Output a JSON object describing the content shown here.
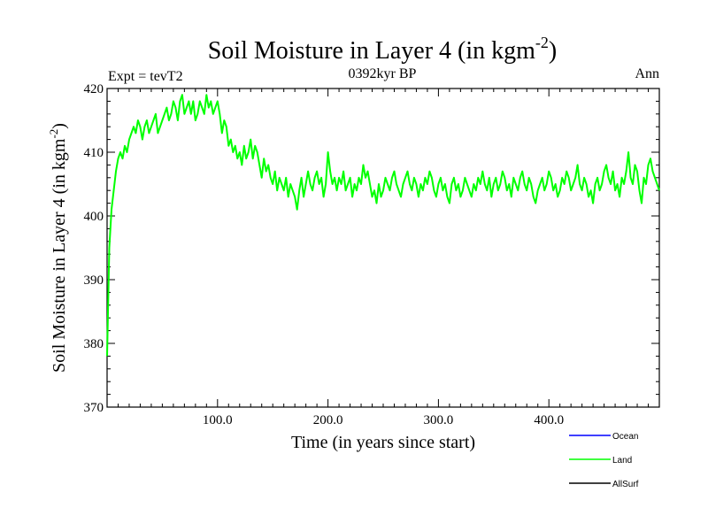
{
  "chart_data": {
    "type": "line",
    "title": "Soil Moisture in Layer 4 (in kgm",
    "title_sup": "-2",
    "title_close": ")",
    "subtitle": "0392kyr BP",
    "left_label": "Expt = tevT2",
    "right_label": "Ann",
    "xlabel": "Time (in years since start)",
    "ylabel": "Soil Moisture in Layer 4 (in kgm",
    "ylabel_sup": "-2",
    "ylabel_close": ")",
    "xlim": [
      0,
      500
    ],
    "ylim": [
      370,
      420
    ],
    "x_ticks": [
      {
        "value": 100,
        "label": "100.0"
      },
      {
        "value": 200,
        "label": "200.0"
      },
      {
        "value": 300,
        "label": "300.0"
      },
      {
        "value": 400,
        "label": "400.0"
      }
    ],
    "y_ticks": [
      {
        "value": 370,
        "label": "370"
      },
      {
        "value": 380,
        "label": "380"
      },
      {
        "value": 390,
        "label": "390"
      },
      {
        "value": 400,
        "label": "400"
      },
      {
        "value": 410,
        "label": "410"
      },
      {
        "value": 420,
        "label": "420"
      }
    ],
    "legend": [
      {
        "name": "Ocean",
        "color": "#0000ff"
      },
      {
        "name": "Land",
        "color": "#00ff00"
      },
      {
        "name": "AllSurf",
        "color": "#000000"
      }
    ],
    "legend_placement": "bottom-right, below plot",
    "grid": false,
    "series": [
      {
        "name": "Land",
        "color": "#00ff00",
        "x": [
          0,
          2,
          4,
          6,
          8,
          10,
          12,
          14,
          16,
          18,
          20,
          22,
          24,
          26,
          28,
          30,
          32,
          34,
          36,
          38,
          40,
          42,
          44,
          46,
          48,
          50,
          52,
          54,
          56,
          58,
          60,
          62,
          64,
          66,
          68,
          70,
          72,
          74,
          76,
          78,
          80,
          82,
          84,
          86,
          88,
          90,
          92,
          94,
          96,
          98,
          100,
          102,
          104,
          106,
          108,
          110,
          112,
          114,
          116,
          118,
          120,
          122,
          124,
          126,
          128,
          130,
          132,
          134,
          136,
          138,
          140,
          142,
          144,
          146,
          148,
          150,
          152,
          154,
          156,
          158,
          160,
          162,
          164,
          166,
          168,
          170,
          172,
          174,
          176,
          178,
          180,
          182,
          184,
          186,
          188,
          190,
          192,
          194,
          196,
          198,
          200,
          202,
          204,
          206,
          208,
          210,
          212,
          214,
          216,
          218,
          220,
          222,
          224,
          226,
          228,
          230,
          232,
          234,
          236,
          238,
          240,
          242,
          244,
          246,
          248,
          250,
          252,
          254,
          256,
          258,
          260,
          262,
          264,
          266,
          268,
          270,
          272,
          274,
          276,
          278,
          280,
          282,
          284,
          286,
          288,
          290,
          292,
          294,
          296,
          298,
          300,
          302,
          304,
          306,
          308,
          310,
          312,
          314,
          316,
          318,
          320,
          322,
          324,
          326,
          328,
          330,
          332,
          334,
          336,
          338,
          340,
          342,
          344,
          346,
          348,
          350,
          352,
          354,
          356,
          358,
          360,
          362,
          364,
          366,
          368,
          370,
          372,
          374,
          376,
          378,
          380,
          382,
          384,
          386,
          388,
          390,
          392,
          394,
          396,
          398,
          400,
          402,
          404,
          406,
          408,
          410,
          412,
          414,
          416,
          418,
          420,
          422,
          424,
          426,
          428,
          430,
          432,
          434,
          436,
          438,
          440,
          442,
          444,
          446,
          448,
          450,
          452,
          454,
          456,
          458,
          460,
          462,
          464,
          466,
          468,
          470,
          472,
          474,
          476,
          478,
          480,
          482,
          484,
          486,
          488,
          490,
          492,
          494,
          496,
          498,
          500
        ],
        "y": [
          378,
          395,
          401,
          404,
          407,
          409,
          410,
          409,
          411,
          410,
          412,
          413,
          414,
          413,
          415,
          414,
          412,
          414,
          415,
          413,
          414,
          415,
          416,
          413,
          414,
          415,
          416,
          417,
          415,
          416,
          418,
          417,
          415,
          418,
          419,
          416,
          417,
          418,
          416,
          418,
          415,
          416,
          418,
          417,
          416,
          419,
          417,
          418,
          416,
          417,
          418,
          416,
          413,
          415,
          414,
          411,
          412,
          410,
          411,
          409,
          410,
          408,
          411,
          409,
          410,
          412,
          409,
          411,
          410,
          408,
          406,
          409,
          407,
          408,
          406,
          405,
          407,
          404,
          406,
          405,
          404,
          406,
          403,
          405,
          404,
          403,
          401,
          404,
          406,
          403,
          405,
          407,
          405,
          404,
          406,
          407,
          405,
          406,
          403,
          405,
          410,
          407,
          405,
          406,
          404,
          406,
          405,
          407,
          404,
          405,
          406,
          403,
          405,
          404,
          406,
          405,
          408,
          406,
          407,
          405,
          403,
          404,
          402,
          405,
          403,
          404,
          406,
          405,
          404,
          406,
          407,
          405,
          404,
          403,
          405,
          406,
          407,
          405,
          404,
          406,
          405,
          403,
          405,
          404,
          406,
          405,
          407,
          406,
          404,
          403,
          405,
          406,
          404,
          405,
          403,
          402,
          405,
          406,
          404,
          405,
          403,
          404,
          406,
          405,
          404,
          403,
          405,
          404,
          406,
          405,
          407,
          405,
          404,
          406,
          403,
          405,
          406,
          404,
          405,
          407,
          406,
          404,
          405,
          403,
          406,
          405,
          404,
          406,
          407,
          405,
          404,
          406,
          405,
          403,
          402,
          404,
          405,
          406,
          404,
          405,
          407,
          406,
          404,
          405,
          403,
          404,
          406,
          405,
          407,
          406,
          404,
          405,
          406,
          408,
          405,
          404,
          406,
          405,
          403,
          404,
          402,
          405,
          406,
          404,
          405,
          407,
          408,
          406,
          405,
          407,
          404,
          405,
          403,
          406,
          405,
          407,
          410,
          406,
          405,
          408,
          407,
          404,
          402,
          406,
          405,
          408,
          409,
          407,
          406,
          405,
          404
        ]
      },
      {
        "name": "Ocean",
        "color": "#0000ff",
        "x": [],
        "y": []
      },
      {
        "name": "AllSurf",
        "color": "#000000",
        "x": [],
        "y": []
      }
    ]
  }
}
